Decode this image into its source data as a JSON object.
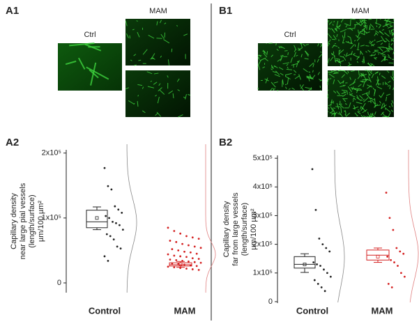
{
  "figure": {
    "A1": {
      "label": "A1",
      "ctrl": "Ctrl",
      "mam": "MAM"
    },
    "B1": {
      "label": "B1",
      "ctrl": "Ctrl",
      "mam": "MAM"
    }
  },
  "chart_data": [
    {
      "type": "box",
      "label": "A2",
      "ylabel": [
        "Capillary density",
        "near large pial vessels",
        "(length/surface)",
        "µm/100 µm²"
      ],
      "ylim": [
        -15000,
        205000
      ],
      "yticks": [
        0,
        {
          "value": 100000,
          "label": "1x10⁵"
        },
        {
          "value": 200000,
          "label": "2x10⁵"
        }
      ],
      "categories": [
        "Control",
        "MAM"
      ],
      "series": [
        {
          "name": "Control",
          "color": "#222222",
          "box": {
            "whisker_low": 82000,
            "q1": 85000,
            "median": 94000,
            "mean": 100000,
            "q3": 112000,
            "whisker_high": 117000
          },
          "values": [
            177000,
            149000,
            144000,
            118000,
            113000,
            108000,
            103000,
            100000,
            94000,
            92000,
            89000,
            82000,
            75000,
            72000,
            67000,
            56000,
            53000,
            41000,
            34000
          ]
        },
        {
          "name": "MAM",
          "color": "#d42020",
          "box": {
            "whisker_low": 24000,
            "q1": 26000,
            "median": 28000,
            "mean": 29000,
            "q3": 31000,
            "whisker_high": 33000
          },
          "values": [
            85000,
            80000,
            76000,
            72000,
            70000,
            68000,
            65000,
            63000,
            60000,
            58000,
            56000,
            54000,
            52000,
            50000,
            48000,
            47000,
            45000,
            44000,
            42000,
            41000,
            40000,
            38000,
            37000,
            36000,
            35000,
            34000,
            33000,
            32000,
            31000,
            30000,
            29000,
            28000,
            27000,
            26000,
            25000,
            24000,
            23000,
            22000,
            21000,
            20000
          ]
        }
      ]
    },
    {
      "type": "box",
      "label": "B2",
      "ylabel": [
        "Capillary density",
        "far from large vessels",
        "(length/surface)",
        "µm/100 µm²"
      ],
      "ylim": [
        -5000,
        510000
      ],
      "yticks": [
        0,
        {
          "value": 100000,
          "label": "1x10⁵"
        },
        {
          "value": 200000,
          "label": "2x10⁵"
        },
        {
          "value": 300000,
          "label": "3x10⁵"
        },
        {
          "value": 400000,
          "label": "4x10⁵"
        },
        {
          "value": 500000,
          "label": "5x10⁵"
        }
      ],
      "categories": [
        "Control",
        "MAM"
      ],
      "series": [
        {
          "name": "Control",
          "color": "#222222",
          "box": {
            "whisker_low": 102000,
            "q1": 117000,
            "median": 130000,
            "mean": 130000,
            "q3": 157000,
            "whisker_high": 167000
          },
          "values": [
            462000,
            320000,
            220000,
            200000,
            187000,
            175000,
            137000,
            130000,
            125000,
            112000,
            100000,
            87000,
            75000,
            62000,
            50000,
            37000
          ]
        },
        {
          "name": "MAM",
          "color": "#d42020",
          "box": {
            "whisker_low": 137000,
            "q1": 145000,
            "median": 162000,
            "mean": 157000,
            "q3": 180000,
            "whisker_high": 187000
          },
          "values": [
            380000,
            292000,
            250000,
            187000,
            175000,
            167000,
            157000,
            145000,
            137000,
            125000,
            100000,
            87000,
            62000,
            50000
          ]
        }
      ]
    }
  ]
}
